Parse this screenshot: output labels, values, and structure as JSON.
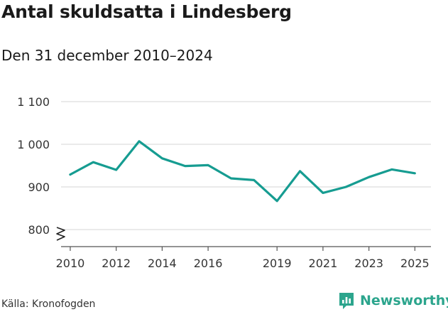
{
  "header": {
    "title": "Antal skuldsatta i Lindesberg",
    "subtitle": "Den 31 december 2010–2024"
  },
  "footer": {
    "source": "Källa: Kronofogden",
    "brand": "Newsworthy"
  },
  "colors": {
    "line": "#169c91",
    "grid": "#dddddd",
    "brand": "#2ca58d"
  },
  "chart_data": {
    "type": "line",
    "title": "Antal skuldsatta i Lindesberg",
    "subtitle": "Den 31 december 2010–2024",
    "xlabel": "",
    "ylabel": "",
    "x": [
      2010,
      2011,
      2012,
      2013,
      2014,
      2015,
      2016,
      2017,
      2018,
      2019,
      2020,
      2021,
      2022,
      2023,
      2024,
      2025
    ],
    "series": [
      {
        "name": "Antal skuldsatta",
        "values": [
          929,
          958,
          940,
          1007,
          967,
          949,
          951,
          920,
          916,
          867,
          937,
          886,
          900,
          923,
          941,
          932
        ]
      }
    ],
    "x_ticks": [
      "2010",
      "2012",
      "2014",
      "2016",
      "2019",
      "2021",
      "2023",
      "2025"
    ],
    "y_ticks": [
      {
        "value": 800,
        "label": "800"
      },
      {
        "value": 900,
        "label": "900"
      },
      {
        "value": 1000,
        "label": "1 000"
      },
      {
        "value": 1100,
        "label": "1 100"
      }
    ],
    "ylim": [
      760,
      1100
    ],
    "xlim": [
      2009.6,
      2025.7
    ],
    "grid": true,
    "axis_break": true
  }
}
